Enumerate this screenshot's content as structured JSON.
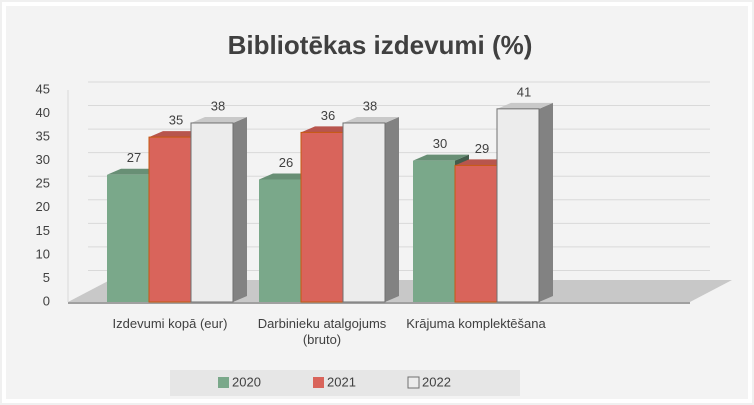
{
  "chart_data": {
    "type": "bar3d",
    "title": "Bibliotēkas izdevumi (%)",
    "categories": [
      "Izdevumi kopā (eur)",
      "Darbinieku atalgojums (bruto)",
      "Krājuma komplektēšana"
    ],
    "series": [
      {
        "name": "2020",
        "color": "#7aa88a",
        "values": [
          27,
          26,
          30
        ]
      },
      {
        "name": "2021",
        "color": "#d9645b",
        "values": [
          35,
          36,
          29
        ]
      },
      {
        "name": "2022",
        "color": "#ececec",
        "values": [
          38,
          38,
          41
        ]
      }
    ],
    "ylim": [
      0,
      45
    ],
    "yticks": [
      0,
      5,
      10,
      15,
      20,
      25,
      30,
      35,
      40,
      45
    ],
    "grid": true,
    "legend": "bottom"
  }
}
